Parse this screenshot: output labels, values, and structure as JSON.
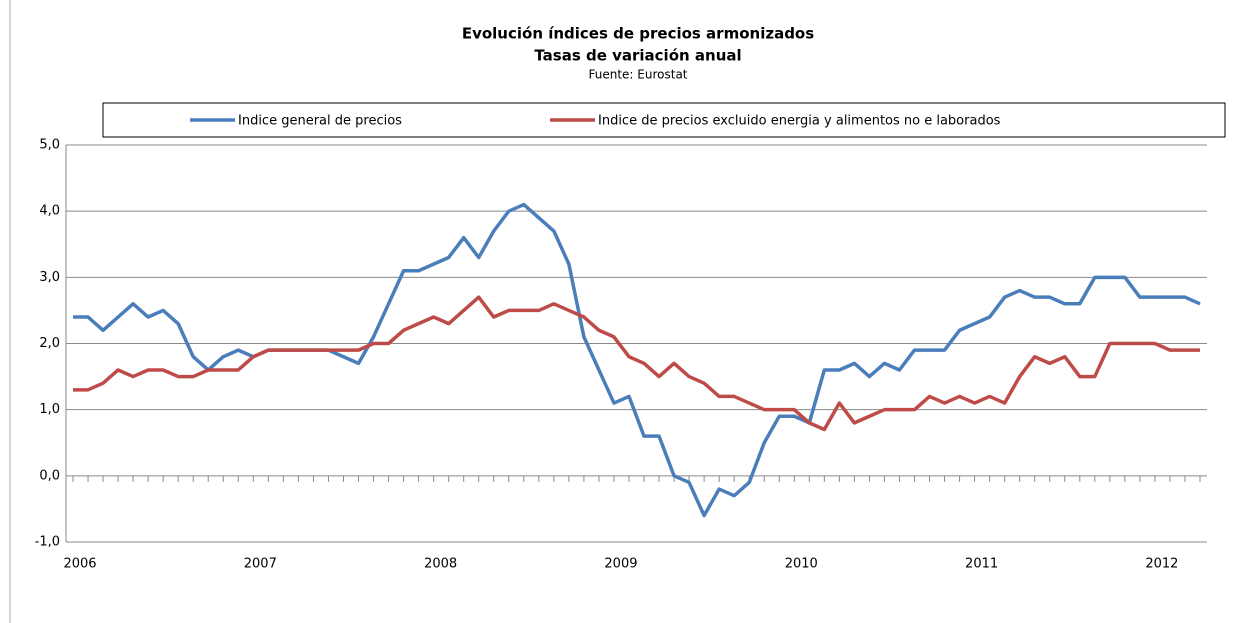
{
  "chart_data": {
    "type": "line",
    "title": "Evolución  índices de precios  armonizados",
    "subtitle": "Tasas de variación anual",
    "source": "Fuente: Eurostat",
    "categories": [
      "2006",
      null,
      null,
      null,
      null,
      null,
      null,
      null,
      null,
      null,
      null,
      null,
      "2007",
      null,
      null,
      null,
      null,
      null,
      null,
      null,
      null,
      null,
      null,
      null,
      "2008",
      null,
      null,
      null,
      null,
      null,
      null,
      null,
      null,
      null,
      null,
      null,
      "2009",
      null,
      null,
      null,
      null,
      null,
      null,
      null,
      null,
      null,
      null,
      null,
      "2010",
      null,
      null,
      null,
      null,
      null,
      null,
      null,
      null,
      null,
      null,
      null,
      "2011",
      null,
      null,
      null,
      null,
      null,
      null,
      null,
      null,
      null,
      null,
      null,
      "2012",
      null,
      null,
      null
    ],
    "series": [
      {
        "name": "Indice general de precios",
        "color": "#4a7ebb",
        "values": [
          2.4,
          2.4,
          2.2,
          2.4,
          2.6,
          2.4,
          2.5,
          2.3,
          1.8,
          1.6,
          1.8,
          1.9,
          1.8,
          1.9,
          1.9,
          1.9,
          1.9,
          1.9,
          1.8,
          1.7,
          2.1,
          2.6,
          3.1,
          3.1,
          3.2,
          3.3,
          3.6,
          3.3,
          3.7,
          4.0,
          4.1,
          3.9,
          3.7,
          3.2,
          2.1,
          1.6,
          1.1,
          1.2,
          0.6,
          0.6,
          0.0,
          -0.1,
          -0.6,
          -0.2,
          -0.3,
          -0.1,
          0.5,
          0.9,
          0.9,
          0.8,
          1.6,
          1.6,
          1.7,
          1.5,
          1.7,
          1.6,
          1.9,
          1.9,
          1.9,
          2.2,
          2.3,
          2.4,
          2.7,
          2.8,
          2.7,
          2.7,
          2.6,
          2.6,
          3.0,
          3.0,
          3.0,
          2.7,
          2.7,
          2.7,
          2.7,
          2.6
        ]
      },
      {
        "name": "Indice de precios excluido energia y alimentos no e laborados",
        "color": "#be4b48",
        "values": [
          1.3,
          1.3,
          1.4,
          1.6,
          1.5,
          1.6,
          1.6,
          1.5,
          1.5,
          1.6,
          1.6,
          1.6,
          1.8,
          1.9,
          1.9,
          1.9,
          1.9,
          1.9,
          1.9,
          1.9,
          2.0,
          2.0,
          2.2,
          2.3,
          2.4,
          2.3,
          2.5,
          2.7,
          2.4,
          2.5,
          2.5,
          2.5,
          2.6,
          2.5,
          2.4,
          2.2,
          2.1,
          1.8,
          1.7,
          1.5,
          1.7,
          1.5,
          1.4,
          1.2,
          1.2,
          1.1,
          1.0,
          1.0,
          1.0,
          0.8,
          0.7,
          1.1,
          0.8,
          0.9,
          1.0,
          1.0,
          1.0,
          1.2,
          1.1,
          1.2,
          1.1,
          1.2,
          1.1,
          1.5,
          1.8,
          1.7,
          1.8,
          1.5,
          1.5,
          2.0,
          2.0,
          2.0,
          2.0,
          1.9,
          1.9,
          1.9
        ]
      }
    ],
    "ylim": [
      -1,
      5
    ],
    "yticks": [
      {
        "value": -1,
        "label": "-1,0"
      },
      {
        "value": 0,
        "label": "0,0"
      },
      {
        "value": 1,
        "label": "1,0"
      },
      {
        "value": 2,
        "label": "2,0"
      },
      {
        "value": 3,
        "label": "3,0"
      },
      {
        "value": 4,
        "label": "4,0"
      },
      {
        "value": 5,
        "label": "5,0"
      }
    ],
    "grid": true,
    "legend": "top"
  }
}
